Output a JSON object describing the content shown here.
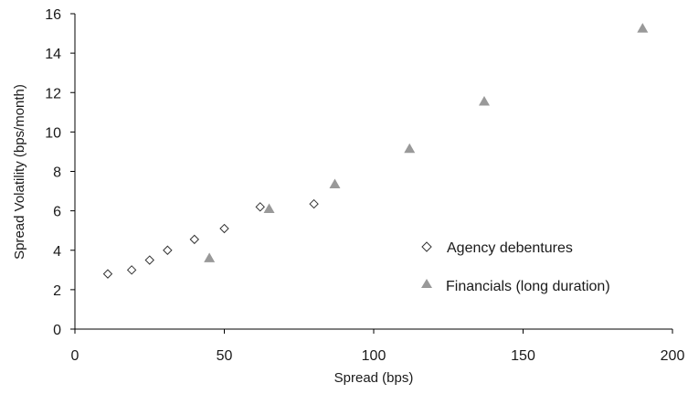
{
  "chart_data": {
    "type": "scatter",
    "xlabel": "Spread (bps)",
    "ylabel": "Spread Volatility (bps/month)",
    "xlim": [
      0,
      200
    ],
    "ylim": [
      0,
      16
    ],
    "x_ticks": [
      0,
      50,
      100,
      150,
      200
    ],
    "y_ticks": [
      0,
      2,
      4,
      6,
      8,
      10,
      12,
      14,
      16
    ],
    "grid": false,
    "legend_position": "right",
    "series": [
      {
        "name": "Agency debentures",
        "marker": "diamond-open",
        "color": "#333333",
        "points": [
          {
            "x": 11,
            "y": 2.8
          },
          {
            "x": 19,
            "y": 3.0
          },
          {
            "x": 25,
            "y": 3.5
          },
          {
            "x": 31,
            "y": 4.0
          },
          {
            "x": 40,
            "y": 4.55
          },
          {
            "x": 50,
            "y": 5.1
          },
          {
            "x": 62,
            "y": 6.2
          },
          {
            "x": 80,
            "y": 6.35
          }
        ]
      },
      {
        "name": "Financials (long duration)",
        "marker": "triangle-filled",
        "color": "#999999",
        "points": [
          {
            "x": 45,
            "y": 3.6
          },
          {
            "x": 65,
            "y": 6.1
          },
          {
            "x": 87,
            "y": 7.35
          },
          {
            "x": 112,
            "y": 9.15
          },
          {
            "x": 137,
            "y": 11.55
          },
          {
            "x": 190,
            "y": 15.25
          }
        ]
      }
    ]
  }
}
